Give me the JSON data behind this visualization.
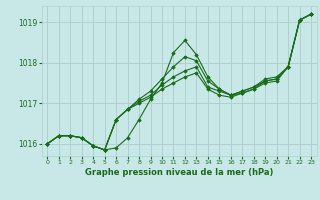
{
  "title": "Graphe pression niveau de la mer (hPa)",
  "background_color": "#c8e8e8",
  "grid_color": "#b0d0d0",
  "line_color": "#1a6b1a",
  "marker_color": "#1a6b1a",
  "xlim": [
    -0.5,
    23.5
  ],
  "ylim": [
    1015.7,
    1019.4
  ],
  "yticks": [
    1016,
    1017,
    1018,
    1019
  ],
  "xticks": [
    0,
    1,
    2,
    3,
    4,
    5,
    6,
    7,
    8,
    9,
    10,
    11,
    12,
    13,
    14,
    15,
    16,
    17,
    18,
    19,
    20,
    21,
    22,
    23
  ],
  "series": [
    [
      1016.0,
      1016.2,
      1016.2,
      1016.15,
      1015.95,
      1015.85,
      1015.9,
      1016.15,
      1016.6,
      1017.1,
      1017.5,
      1018.25,
      1018.55,
      1018.2,
      1017.65,
      1017.35,
      1017.2,
      1017.25,
      1017.35,
      1017.5,
      1017.55,
      1017.9,
      1019.05,
      1019.2
    ],
    [
      1016.0,
      1016.2,
      1016.2,
      1016.15,
      1015.95,
      1015.85,
      1016.6,
      1016.85,
      1017.0,
      1017.15,
      1017.35,
      1017.5,
      1017.65,
      1017.75,
      1017.35,
      1017.2,
      1017.15,
      1017.25,
      1017.35,
      1017.55,
      1017.6,
      1017.9,
      1019.05,
      1019.2
    ],
    [
      1016.0,
      1016.2,
      1016.2,
      1016.15,
      1015.95,
      1015.85,
      1016.6,
      1016.85,
      1017.05,
      1017.2,
      1017.45,
      1017.65,
      1017.8,
      1017.9,
      1017.4,
      1017.3,
      1017.2,
      1017.3,
      1017.4,
      1017.6,
      1017.65,
      1017.9,
      1019.05,
      1019.2
    ],
    [
      1016.0,
      1016.2,
      1016.2,
      1016.15,
      1015.95,
      1015.85,
      1016.6,
      1016.85,
      1017.1,
      1017.3,
      1017.6,
      1017.9,
      1018.15,
      1018.05,
      1017.55,
      1017.35,
      1017.2,
      1017.3,
      1017.4,
      1017.55,
      1017.6,
      1017.9,
      1019.05,
      1019.2
    ]
  ]
}
